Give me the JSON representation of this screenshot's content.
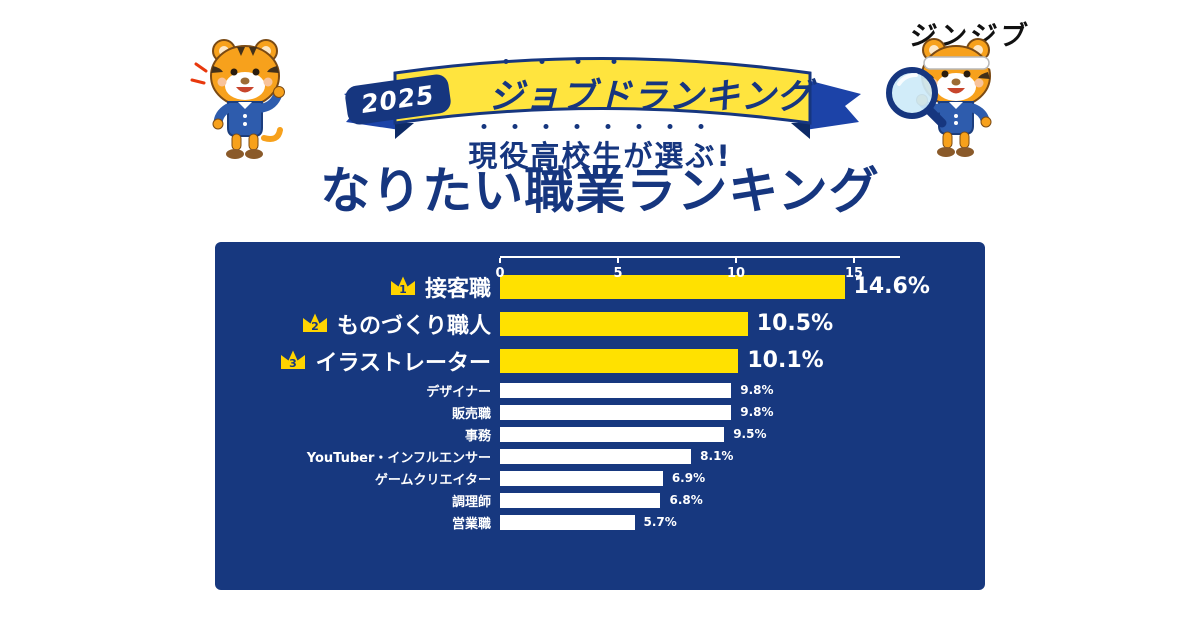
{
  "brand": "ジンジブ",
  "banner": {
    "year": "2025",
    "title": "ジョブドランキング"
  },
  "subtitle": "現役高校生が選ぶ!",
  "title": "なりたい職業ランキング",
  "colors": {
    "navy": "#16367f",
    "panel_bg": "#17387f",
    "ribbon_yellow": "#ffe43e",
    "bar_top3": "#ffe100",
    "bar_rest": "#ffffff",
    "accent_red": "#e8380d"
  },
  "chart_data": {
    "type": "bar",
    "orientation": "horizontal",
    "title": "現役高校生が選ぶ! なりたい職業ランキング 2025",
    "categories": [
      "接客職",
      "ものづくり職人",
      "イラストレーター",
      "デザイナー",
      "販売職",
      "事務",
      "YouTuber・インフルエンサー",
      "ゲームクリエイター",
      "調理師",
      "営業職"
    ],
    "values": [
      14.6,
      10.5,
      10.1,
      9.8,
      9.8,
      9.5,
      8.1,
      6.9,
      6.8,
      5.7
    ],
    "value_labels": [
      "14.6%",
      "10.5%",
      "10.1%",
      "9.8%",
      "9.8%",
      "9.5%",
      "8.1%",
      "6.9%",
      "6.8%",
      "5.7%"
    ],
    "highlighted_ranks": 3,
    "xlabel": "",
    "ylabel": "",
    "xticks": [
      0,
      5,
      10,
      15
    ],
    "xlim": [
      0,
      15
    ],
    "grid": false,
    "legend": false,
    "bar_color_top3": "#ffe100",
    "bar_color_rest": "#ffffff"
  }
}
